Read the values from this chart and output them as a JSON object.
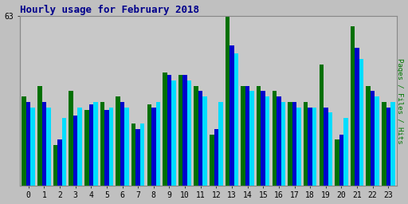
{
  "title": "Hourly usage for February 2018",
  "hours": [
    0,
    1,
    2,
    3,
    4,
    5,
    6,
    7,
    8,
    9,
    10,
    11,
    12,
    13,
    14,
    15,
    16,
    17,
    18,
    19,
    20,
    21,
    22,
    23
  ],
  "pages": [
    33,
    37,
    15,
    35,
    28,
    31,
    33,
    23,
    30,
    42,
    41,
    37,
    19,
    63,
    37,
    37,
    35,
    31,
    31,
    45,
    17,
    59,
    37,
    31
  ],
  "files": [
    31,
    31,
    17,
    26,
    30,
    28,
    31,
    21,
    29,
    41,
    41,
    35,
    21,
    52,
    37,
    35,
    33,
    31,
    29,
    29,
    19,
    51,
    35,
    29
  ],
  "hits": [
    29,
    29,
    25,
    29,
    31,
    29,
    29,
    23,
    31,
    39,
    39,
    33,
    31,
    49,
    35,
    33,
    31,
    29,
    29,
    27,
    25,
    47,
    33,
    31
  ],
  "ylim": [
    0,
    63
  ],
  "ytick_val": 63,
  "ylabel": "Pages / Files / Hits",
  "background_color": "#c0c0c0",
  "plot_bg": "#c8c8c8",
  "pages_color": "#007000",
  "files_color": "#0000cc",
  "hits_color": "#00ddff",
  "title_color": "#00008b",
  "ylabel_color": "#007700",
  "grid_color": "#aaaaaa",
  "bar_width": 0.28,
  "figsize": [
    5.12,
    2.56
  ],
  "dpi": 100
}
